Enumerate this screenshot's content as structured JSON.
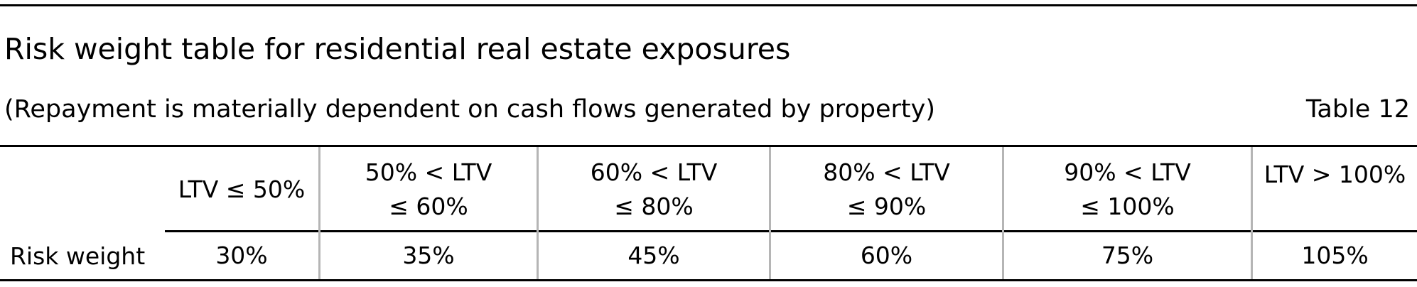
{
  "title": "Risk weight table for residential real estate exposures",
  "subtitle": "(Repayment is materially dependent on cash flows generated by property)",
  "table_number": "Table 12",
  "table": {
    "columns": [
      "LTV ≤ 50%",
      "50% < LTV ≤ 60%",
      "60% < LTV ≤ 80%",
      "80% < LTV ≤ 90%",
      "90% < LTV ≤ 100%",
      "LTV > 100%"
    ],
    "row_label": "Risk weight",
    "values": [
      "30%",
      "35%",
      "45%",
      "60%",
      "75%",
      "105%"
    ]
  }
}
